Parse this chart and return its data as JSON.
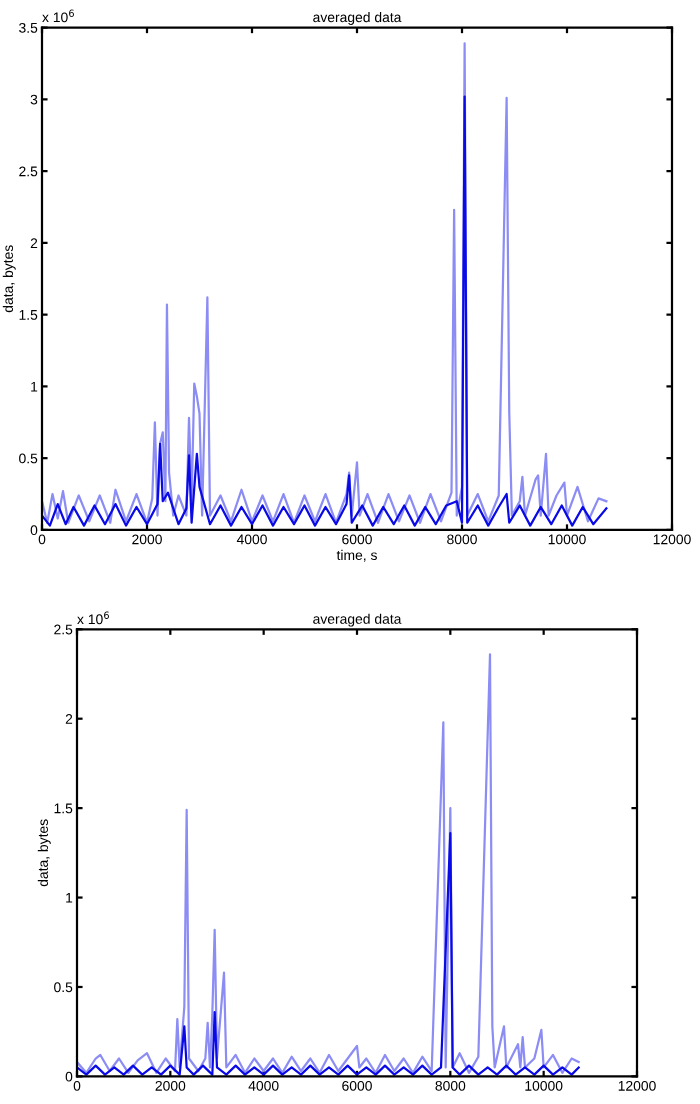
{
  "chart_data": [
    {
      "type": "line",
      "title": "averaged data",
      "xlabel": "time, s",
      "ylabel": "data, bytes",
      "annotations": [
        "x 10$^{6}$"
      ],
      "xlim": [
        0,
        12000
      ],
      "xticks": [
        0,
        2000,
        4000,
        6000,
        8000,
        10000,
        12000
      ],
      "ylim": [
        0,
        3.5
      ],
      "yticks": [
        0,
        0.5,
        1,
        1.5,
        2,
        2.5,
        3,
        3.5
      ],
      "line_style": "solid",
      "marker": "none",
      "series": [
        {
          "color": "#8c8cf5",
          "x": [
            0,
            100,
            200,
            300,
            400,
            500,
            700,
            900,
            1100,
            1300,
            1400,
            1600,
            1800,
            2000,
            2100,
            2150,
            2200,
            2250,
            2300,
            2350,
            2380,
            2420,
            2500,
            2600,
            2750,
            2800,
            2850,
            2900,
            2950,
            3000,
            3050,
            3150,
            3200,
            3400,
            3600,
            3800,
            4000,
            4200,
            4400,
            4600,
            4800,
            5000,
            5200,
            5400,
            5600,
            5800,
            5850,
            5900,
            6000,
            6050,
            6200,
            6400,
            6600,
            6800,
            7000,
            7200,
            7400,
            7600,
            7800,
            7850,
            7900,
            8000,
            8050,
            8100,
            8300,
            8500,
            8700,
            8850,
            8900,
            8950,
            9100,
            9150,
            9200,
            9400,
            9450,
            9500,
            9600,
            9650,
            9800,
            9950,
            10000,
            10200,
            10400,
            10600,
            10750
          ],
          "values": [
            0.2,
            0.05,
            0.25,
            0.08,
            0.27,
            0.05,
            0.24,
            0.06,
            0.24,
            0.05,
            0.28,
            0.06,
            0.25,
            0.05,
            0.22,
            0.75,
            0.1,
            0.6,
            0.68,
            0.2,
            1.57,
            0.4,
            0.1,
            0.24,
            0.1,
            0.78,
            0.2,
            1.02,
            0.93,
            0.81,
            0.1,
            1.62,
            0.1,
            0.24,
            0.06,
            0.28,
            0.06,
            0.24,
            0.06,
            0.25,
            0.05,
            0.24,
            0.06,
            0.25,
            0.05,
            0.25,
            0.4,
            0.1,
            0.47,
            0.1,
            0.25,
            0.05,
            0.25,
            0.06,
            0.24,
            0.05,
            0.25,
            0.06,
            0.26,
            2.23,
            0.1,
            0.3,
            3.39,
            0.1,
            0.25,
            0.06,
            0.24,
            3.01,
            0.82,
            0.1,
            0.2,
            0.37,
            0.1,
            0.35,
            0.38,
            0.1,
            0.53,
            0.1,
            0.24,
            0.33,
            0.1,
            0.3,
            0.06,
            0.22,
            0.2
          ]
        },
        {
          "color": "#0a0ae6",
          "x": [
            0,
            150,
            300,
            450,
            600,
            800,
            1000,
            1200,
            1400,
            1600,
            1800,
            2000,
            2200,
            2250,
            2300,
            2400,
            2600,
            2750,
            2800,
            2850,
            2950,
            3000,
            3200,
            3400,
            3600,
            3800,
            4000,
            4200,
            4400,
            4600,
            4800,
            5000,
            5200,
            5400,
            5600,
            5800,
            5850,
            5900,
            6100,
            6300,
            6500,
            6700,
            6900,
            7100,
            7300,
            7500,
            7700,
            7900,
            8000,
            8050,
            8100,
            8300,
            8500,
            8700,
            8850,
            8900,
            9100,
            9300,
            9500,
            9700,
            9900,
            10100,
            10300,
            10500,
            10750
          ],
          "values": [
            0.1,
            0.03,
            0.18,
            0.04,
            0.16,
            0.03,
            0.17,
            0.04,
            0.18,
            0.03,
            0.16,
            0.04,
            0.18,
            0.6,
            0.2,
            0.26,
            0.04,
            0.15,
            0.52,
            0.05,
            0.53,
            0.3,
            0.04,
            0.17,
            0.03,
            0.16,
            0.04,
            0.17,
            0.03,
            0.16,
            0.04,
            0.17,
            0.03,
            0.16,
            0.04,
            0.18,
            0.38,
            0.05,
            0.17,
            0.03,
            0.16,
            0.04,
            0.17,
            0.03,
            0.16,
            0.04,
            0.17,
            0.2,
            0.05,
            3.02,
            0.05,
            0.17,
            0.03,
            0.16,
            0.25,
            0.05,
            0.17,
            0.03,
            0.16,
            0.04,
            0.17,
            0.03,
            0.16,
            0.04,
            0.15
          ]
        }
      ]
    },
    {
      "type": "line",
      "title": "averaged data",
      "ylabel": "data, bytes",
      "annotations": [
        "x 10$^{6}$"
      ],
      "xlim": [
        0,
        12000
      ],
      "xticks": [
        0,
        2000,
        4000,
        6000,
        8000,
        10000,
        12000
      ],
      "ylim": [
        0,
        2.5
      ],
      "yticks": [
        0,
        0.5,
        1,
        1.5,
        2,
        2.5
      ],
      "line_style": "solid",
      "marker": "none",
      "series": [
        {
          "color": "#8c8cf5",
          "x": [
            0,
            200,
            400,
            500,
            700,
            900,
            1100,
            1300,
            1500,
            1700,
            1900,
            2100,
            2150,
            2200,
            2300,
            2350,
            2400,
            2600,
            2750,
            2800,
            2850,
            2900,
            2950,
            3000,
            3150,
            3200,
            3400,
            3600,
            3800,
            4000,
            4200,
            4400,
            4600,
            4800,
            5000,
            5200,
            5400,
            5600,
            5800,
            6000,
            6050,
            6200,
            6400,
            6600,
            6800,
            7000,
            7200,
            7400,
            7600,
            7850,
            7900,
            8000,
            8050,
            8200,
            8400,
            8600,
            8850,
            8900,
            8950,
            9150,
            9200,
            9450,
            9500,
            9550,
            9600,
            9800,
            9950,
            10000,
            10200,
            10400,
            10600,
            10750
          ],
          "values": [
            0.08,
            0.02,
            0.1,
            0.12,
            0.03,
            0.1,
            0.02,
            0.09,
            0.13,
            0.02,
            0.1,
            0.03,
            0.32,
            0.05,
            0.39,
            1.49,
            0.1,
            0.03,
            0.1,
            0.3,
            0.05,
            0.35,
            0.82,
            0.1,
            0.58,
            0.05,
            0.12,
            0.02,
            0.1,
            0.03,
            0.1,
            0.02,
            0.11,
            0.03,
            0.1,
            0.02,
            0.12,
            0.03,
            0.1,
            0.17,
            0.05,
            0.1,
            0.02,
            0.12,
            0.03,
            0.1,
            0.02,
            0.11,
            0.03,
            1.98,
            0.05,
            1.5,
            0.05,
            0.13,
            0.02,
            0.11,
            2.36,
            0.28,
            0.05,
            0.28,
            0.05,
            0.18,
            0.05,
            0.22,
            0.05,
            0.1,
            0.26,
            0.05,
            0.12,
            0.02,
            0.1,
            0.08
          ]
        },
        {
          "color": "#0a0ae6",
          "x": [
            0,
            200,
            400,
            600,
            800,
            1000,
            1200,
            1400,
            1600,
            1800,
            2000,
            2200,
            2300,
            2350,
            2500,
            2700,
            2900,
            2950,
            3000,
            3200,
            3400,
            3600,
            3800,
            4000,
            4200,
            4400,
            4600,
            4800,
            5000,
            5200,
            5400,
            5600,
            5800,
            6000,
            6200,
            6400,
            6600,
            6800,
            7000,
            7200,
            7400,
            7600,
            7800,
            8000,
            8050,
            8200,
            8400,
            8600,
            8800,
            9000,
            9200,
            9400,
            9600,
            9800,
            10000,
            10200,
            10400,
            10600,
            10750
          ],
          "values": [
            0.05,
            0.01,
            0.06,
            0.01,
            0.05,
            0.01,
            0.06,
            0.01,
            0.05,
            0.01,
            0.06,
            0.01,
            0.28,
            0.05,
            0.01,
            0.06,
            0.01,
            0.36,
            0.05,
            0.01,
            0.06,
            0.01,
            0.05,
            0.01,
            0.06,
            0.01,
            0.05,
            0.01,
            0.06,
            0.01,
            0.05,
            0.01,
            0.06,
            0.01,
            0.05,
            0.01,
            0.06,
            0.01,
            0.05,
            0.01,
            0.06,
            0.01,
            0.05,
            1.36,
            0.05,
            0.01,
            0.06,
            0.01,
            0.05,
            0.01,
            0.06,
            0.01,
            0.05,
            0.01,
            0.06,
            0.01,
            0.05,
            0.01,
            0.05
          ]
        }
      ]
    }
  ]
}
